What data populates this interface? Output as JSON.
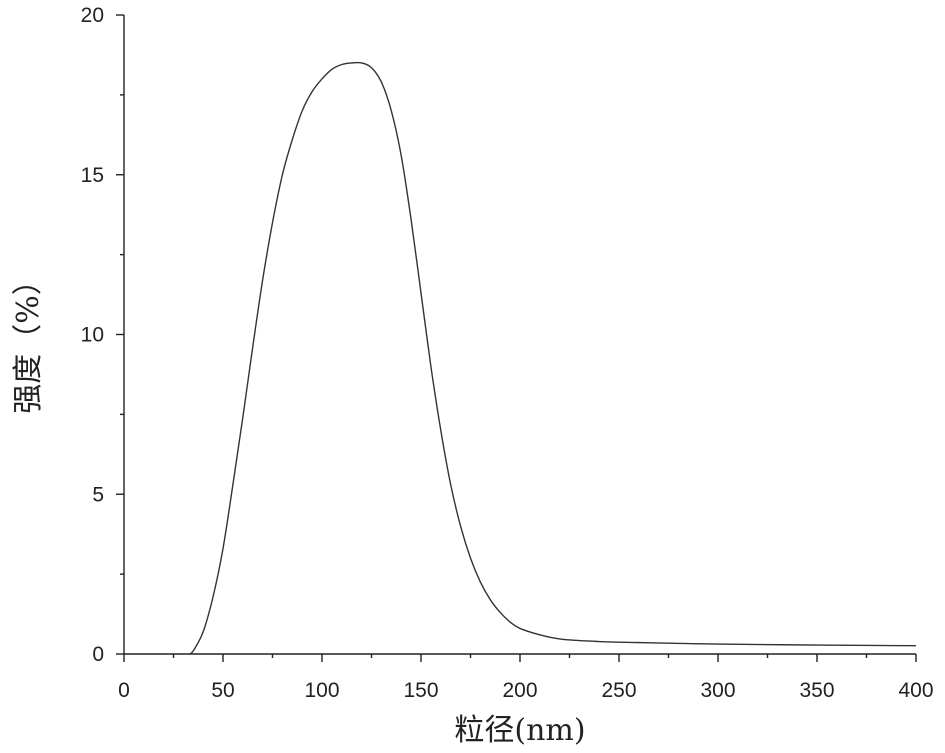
{
  "chart_data": {
    "type": "line",
    "title": "",
    "xlabel": "粒径(nm)",
    "ylabel": "强度（%）",
    "xlim": [
      0,
      400
    ],
    "ylim": [
      0,
      20
    ],
    "xticks": [
      0,
      50,
      100,
      150,
      200,
      250,
      300,
      350,
      400
    ],
    "yticks": [
      0,
      5,
      10,
      15,
      20
    ],
    "x_minor_step": 25,
    "y_minor_step": 2.5,
    "grid": false,
    "legend": "none",
    "series": [
      {
        "name": "",
        "color": "#333333",
        "x": [
          33,
          35,
          40,
          45,
          50,
          55,
          60,
          65,
          70,
          75,
          80,
          85,
          90,
          95,
          100,
          105,
          110,
          115,
          120,
          125,
          130,
          135,
          140,
          145,
          150,
          155,
          160,
          165,
          170,
          175,
          180,
          185,
          190,
          195,
          200,
          210,
          220,
          230,
          240,
          250,
          275,
          300,
          350,
          400
        ],
        "y": [
          0.0,
          0.1,
          0.7,
          1.8,
          3.3,
          5.3,
          7.4,
          9.6,
          11.7,
          13.5,
          15.0,
          16.1,
          17.0,
          17.6,
          18.0,
          18.3,
          18.45,
          18.5,
          18.5,
          18.35,
          17.9,
          17.0,
          15.6,
          13.6,
          11.3,
          9.0,
          7.0,
          5.3,
          4.0,
          3.0,
          2.25,
          1.7,
          1.3,
          1.0,
          0.8,
          0.6,
          0.47,
          0.42,
          0.39,
          0.37,
          0.34,
          0.31,
          0.28,
          0.26
        ]
      }
    ]
  }
}
